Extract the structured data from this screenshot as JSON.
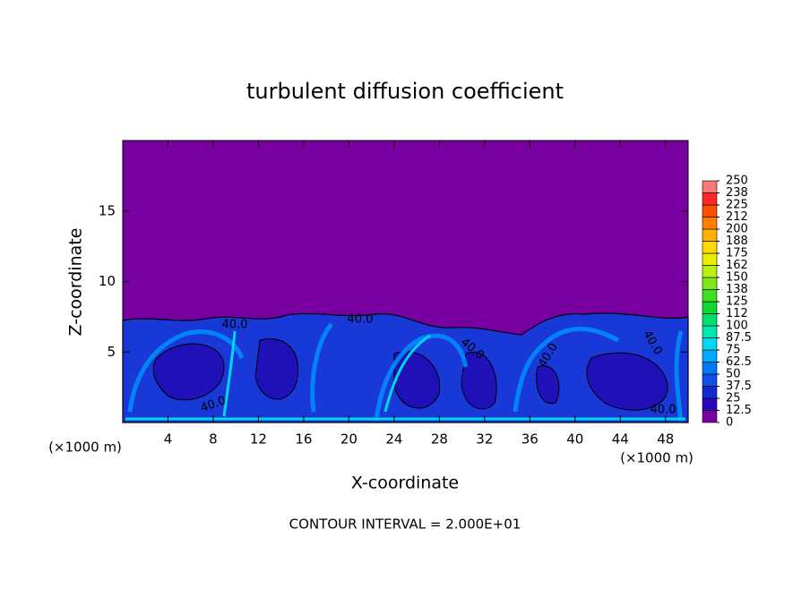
{
  "chart_data": {
    "type": "contour",
    "title": "turbulent diffusion coefficient",
    "x_label": "X-coordinate",
    "y_label": "Z-coordinate",
    "x_unit_label": "(×1000 m)",
    "x_unit_label_right": "(×1000 m)",
    "footnote": "CONTOUR INTERVAL = 2.000E+01",
    "xlim": [
      0,
      50
    ],
    "xticks": [
      4,
      8,
      12,
      16,
      20,
      24,
      28,
      32,
      36,
      40,
      44,
      48
    ],
    "ylim": [
      0,
      20
    ],
    "yticks": [
      5,
      10,
      15
    ],
    "contour_labels": [
      "40.0",
      "40.0",
      "40.0",
      "40.0",
      "40.0",
      "40.0",
      "40.0"
    ],
    "colorbar": {
      "ticks": [
        0,
        12.5,
        25,
        37.5,
        50,
        62.5,
        75,
        87.5,
        100,
        112,
        125,
        138,
        150,
        162,
        175,
        188,
        200,
        212,
        225,
        238,
        250
      ],
      "colors": [
        "#7800a0",
        "#2808b8",
        "#1428d0",
        "#1050e8",
        "#0078f8",
        "#00a8ff",
        "#00d8f0",
        "#00e8b0",
        "#00e070",
        "#10d830",
        "#40e020",
        "#80e818",
        "#b8f010",
        "#e8f000",
        "#ffd800",
        "#ffb000",
        "#ff8000",
        "#ff5000",
        "#ff2828",
        "#f87878"
      ]
    }
  }
}
